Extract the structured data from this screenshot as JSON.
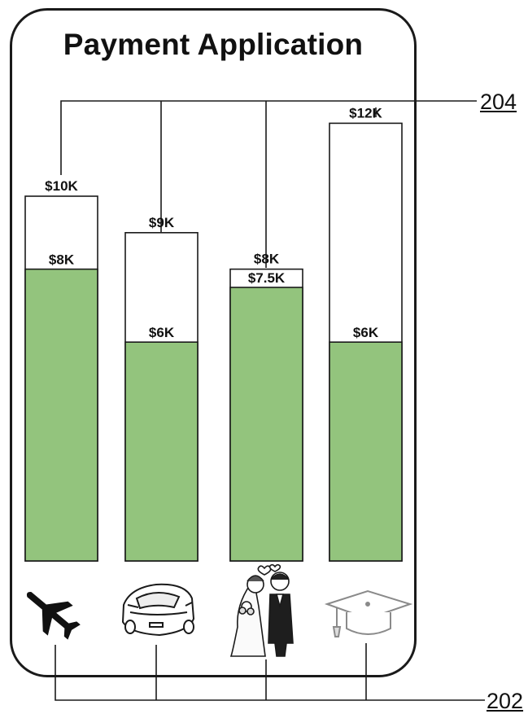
{
  "app": {
    "title": "Payment Application"
  },
  "references": {
    "goals_ref": "204",
    "icons_ref": "202"
  },
  "chart_data": {
    "type": "bar",
    "categories": [
      "Travel",
      "Car",
      "Wedding",
      "Education"
    ],
    "series": [
      {
        "role": "goal",
        "values": [
          10,
          9,
          8,
          12
        ],
        "labels": [
          "$10K",
          "$9K",
          "$8K",
          "$12K"
        ]
      },
      {
        "role": "saved",
        "values": [
          8,
          6,
          7.5,
          6
        ],
        "labels": [
          "$8K",
          "$6K",
          "$7.5K",
          "$6K"
        ]
      }
    ],
    "ylim": [
      0,
      13
    ],
    "units": "thousands of dollars",
    "grid": false,
    "legend": "none",
    "colors": {
      "saved": "#93c47d",
      "goal": "#ffffff",
      "stroke": "#1a1a1a"
    }
  },
  "icons": [
    "airplane-icon",
    "sports-car-icon",
    "wedding-couple-icon",
    "graduation-cap-icon"
  ]
}
